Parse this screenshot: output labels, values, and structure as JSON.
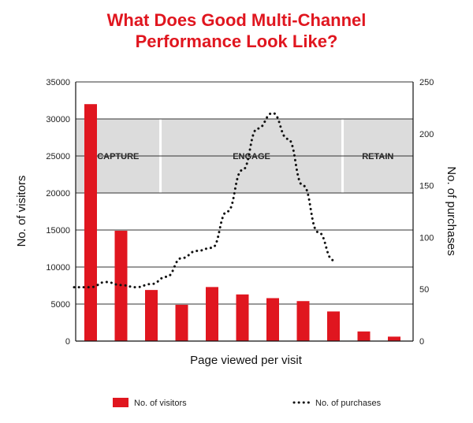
{
  "chart_data": {
    "type": "bar+line",
    "title_lines": [
      "What Does Good Multi-Channel",
      "Performance Look Like?"
    ],
    "xlabel": "Page viewed per visit",
    "ylabel_left": "No. of visitors",
    "ylabel_right": "No. of purchases",
    "ylim_left": [
      0,
      35000
    ],
    "ylim_right": [
      0,
      250
    ],
    "left_ticks": [
      "0",
      "5000",
      "10000",
      "15000",
      "20000",
      "25000",
      "30000",
      "35000"
    ],
    "right_ticks": [
      "0",
      "50",
      "100",
      "150",
      "200",
      "250"
    ],
    "grid": true,
    "bars": {
      "name": "No. of visitors",
      "color": "#e0161f",
      "values": [
        32000,
        14900,
        6900,
        4900,
        7300,
        6300,
        5800,
        5400,
        4000,
        1300,
        600
      ]
    },
    "line": {
      "name": "No. of purchases",
      "color": "#111111",
      "style": "dotted",
      "points": [
        {
          "x": 0,
          "y": 52
        },
        {
          "x": 0.5,
          "y": 57
        },
        {
          "x": 1,
          "y": 54
        },
        {
          "x": 1.5,
          "y": 52
        },
        {
          "x": 2,
          "y": 55
        },
        {
          "x": 2.5,
          "y": 62
        },
        {
          "x": 3,
          "y": 80
        },
        {
          "x": 3.5,
          "y": 87
        },
        {
          "x": 4,
          "y": 90
        },
        {
          "x": 4.5,
          "y": 125
        },
        {
          "x": 5,
          "y": 165
        },
        {
          "x": 5.5,
          "y": 205
        },
        {
          "x": 6,
          "y": 220
        },
        {
          "x": 6.5,
          "y": 195
        },
        {
          "x": 7,
          "y": 150
        },
        {
          "x": 7.5,
          "y": 105
        },
        {
          "x": 8,
          "y": 78
        }
      ]
    },
    "bands": [
      {
        "label": "CAPTURE",
        "from": -0.7,
        "to": 2.3
      },
      {
        "label": "ENGAGE",
        "from": 2.3,
        "to": 8.3
      },
      {
        "label": "RETAIN",
        "from": 8.3,
        "to": 10.7
      }
    ],
    "band_range_left": [
      20000,
      30000
    ],
    "band_color": "#dcdcdc",
    "legend_position": "bottom"
  }
}
